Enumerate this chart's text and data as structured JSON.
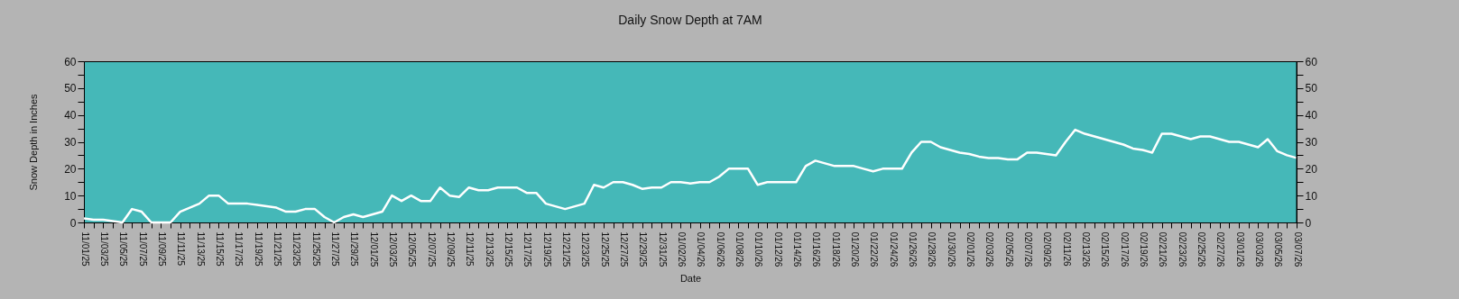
{
  "chart_data": {
    "type": "line",
    "title": "Daily Snow Depth at 7AM",
    "xlabel": "Date",
    "ylabel": "Snow Depth in Inches",
    "categories": [
      "11/01/25",
      null,
      "11/03/25",
      null,
      "11/05/25",
      null,
      "11/07/25",
      null,
      "11/09/25",
      null,
      "11/11/25",
      null,
      "11/13/25",
      null,
      "11/15/25",
      null,
      "11/17/25",
      null,
      "11/19/25",
      null,
      "11/21/25",
      null,
      "11/23/25",
      null,
      "11/25/25",
      null,
      "11/27/25",
      null,
      "11/29/25",
      null,
      "12/01/25",
      null,
      "12/03/25",
      null,
      "12/05/25",
      null,
      "12/07/25",
      null,
      "12/09/25",
      null,
      "12/11/25",
      null,
      "12/13/25",
      null,
      "12/15/25",
      null,
      "12/17/25",
      null,
      "12/19/25",
      null,
      "12/21/25",
      null,
      "12/23/25",
      null,
      "12/25/25",
      null,
      "12/27/25",
      null,
      "12/29/25",
      null,
      "12/31/25",
      null,
      "01/02/26",
      null,
      "01/04/26",
      null,
      "01/06/26",
      null,
      "01/08/26",
      null,
      "01/10/26",
      null,
      "01/12/26",
      null,
      "01/14/26",
      null,
      "01/16/26",
      null,
      "01/18/26",
      null,
      "01/20/26",
      null,
      "01/22/26",
      null,
      "01/24/26",
      null,
      "01/26/26",
      null,
      "01/28/26",
      null,
      "01/30/26",
      null,
      "02/01/26",
      null,
      "02/03/26",
      null,
      "02/05/26",
      null,
      "02/07/26",
      null,
      "02/09/26",
      null,
      "02/11/26",
      null,
      "02/13/26",
      null,
      "02/15/26",
      null,
      "02/17/26",
      null,
      "02/19/26",
      null,
      "02/21/26",
      null,
      "02/23/26",
      null,
      "02/25/26",
      null,
      "02/27/26",
      null,
      "03/01/26",
      null,
      "03/03/26",
      null,
      "03/05/26",
      null,
      "03/07/26"
    ],
    "series": [
      {
        "color": "#ffffff",
        "values": [
          1.5,
          1,
          1,
          0.5,
          0,
          5,
          4,
          0,
          0,
          0,
          4,
          5.5,
          7,
          10,
          10,
          7,
          7,
          7,
          6.5,
          6,
          5.5,
          4,
          4,
          5,
          5,
          2,
          0,
          2,
          3,
          2,
          3,
          4,
          10,
          8,
          10,
          8,
          8,
          13,
          10,
          9.5,
          13,
          12,
          12,
          13,
          13,
          13,
          11,
          11,
          7,
          6,
          5,
          6,
          7,
          14,
          13,
          15,
          15,
          14,
          12.5,
          13,
          13,
          15,
          15,
          14.5,
          15,
          15,
          17,
          20,
          20,
          20,
          14,
          15,
          15,
          15,
          15,
          21,
          23,
          22,
          21,
          21,
          21,
          20,
          19,
          20,
          20,
          20,
          26,
          30,
          30,
          28,
          27,
          26,
          25.5,
          24.5,
          24,
          24,
          23.5,
          23.5,
          26,
          26,
          25.5,
          25,
          30,
          34.5,
          33,
          32,
          31,
          30,
          29,
          27.5,
          27,
          26,
          33,
          33,
          32,
          31,
          32,
          32,
          31,
          30,
          30,
          29,
          28,
          31,
          26.5,
          25,
          24
        ]
      }
    ],
    "ylim": [
      0,
      60
    ],
    "yticks": [
      0,
      {
        "value": 5,
        "label": null
      },
      10,
      {
        "value": 15,
        "label": null
      },
      20,
      {
        "value": 25,
        "label": null
      },
      30,
      {
        "value": 35,
        "label": null
      },
      40,
      {
        "value": 45,
        "label": null
      },
      50,
      {
        "value": 55,
        "label": null
      },
      60
    ],
    "y2lim": [
      0,
      60
    ],
    "y2ticks": [
      0,
      {
        "value": 5,
        "label": null
      },
      10,
      {
        "value": 15,
        "label": null
      },
      20,
      {
        "value": 25,
        "label": null
      },
      30,
      {
        "value": 35,
        "label": null
      },
      40,
      {
        "value": 45,
        "label": null
      },
      50,
      {
        "value": 55,
        "label": null
      },
      60
    ],
    "grid": false,
    "marker": "none",
    "line_style": "solid"
  }
}
